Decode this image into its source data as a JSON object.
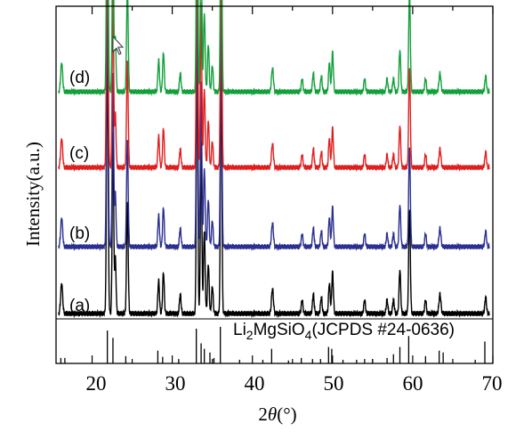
{
  "chart_data": {
    "type": "line",
    "title": "",
    "xlabel": {
      "theta": "θ",
      "prefix": "2",
      "suffix": "(°)"
    },
    "ylabel": "Intensity(a.u.)",
    "xlim": [
      15.5,
      70
    ],
    "x_ticks": [
      "20",
      "30",
      "40",
      "50",
      "60",
      "70"
    ],
    "x_tick_values": [
      20,
      30,
      40,
      50,
      60,
      70
    ],
    "grid": false,
    "peaks": [
      [
        16.2,
        0.11,
        0.12
      ],
      [
        21.9,
        0.95,
        0.1
      ],
      [
        22.6,
        0.66,
        0.09
      ],
      [
        22.9,
        0.2,
        0.09
      ],
      [
        24.4,
        0.4,
        0.1
      ],
      [
        28.3,
        0.12,
        0.1
      ],
      [
        28.9,
        0.15,
        0.1
      ],
      [
        31.0,
        0.07,
        0.1
      ],
      [
        33.1,
        1.0,
        0.09
      ],
      [
        33.6,
        0.62,
        0.09
      ],
      [
        34.0,
        0.3,
        0.1
      ],
      [
        34.5,
        0.18,
        0.1
      ],
      [
        35.0,
        0.1,
        0.1
      ],
      [
        36.1,
        0.92,
        0.09
      ],
      [
        42.5,
        0.09,
        0.12
      ],
      [
        46.2,
        0.05,
        0.1
      ],
      [
        47.6,
        0.07,
        0.1
      ],
      [
        48.6,
        0.06,
        0.1
      ],
      [
        49.6,
        0.11,
        0.1
      ],
      [
        50.0,
        0.15,
        0.1
      ],
      [
        54.0,
        0.05,
        0.1
      ],
      [
        56.8,
        0.05,
        0.1
      ],
      [
        57.6,
        0.05,
        0.1
      ],
      [
        58.4,
        0.16,
        0.1
      ],
      [
        59.6,
        0.38,
        0.1
      ],
      [
        61.6,
        0.05,
        0.1
      ],
      [
        63.4,
        0.07,
        0.12
      ],
      [
        69.1,
        0.06,
        0.1
      ]
    ],
    "series": [
      {
        "name": "(a)",
        "color": "#000000",
        "offset": 0,
        "scale": 1.0
      },
      {
        "name": "(b)",
        "color": "#2b2f8f",
        "offset": 1,
        "scale": 1.0
      },
      {
        "name": "(c)",
        "color": "#e01e1e",
        "offset": 2,
        "scale": 1.0
      },
      {
        "name": "(d)",
        "color": "#12a03a",
        "offset": 3,
        "scale": 1.0
      }
    ],
    "reference": {
      "label_main": "Li",
      "label_sub1": "2",
      "label_mid": "MgSiO",
      "label_sub2": "4",
      "label_tail": "(JCPDS #24-0636)",
      "lines": [
        [
          16.1,
          0.15
        ],
        [
          16.6,
          0.15
        ],
        [
          21.9,
          0.9
        ],
        [
          22.6,
          0.7
        ],
        [
          24.2,
          0.2
        ],
        [
          28.2,
          0.35
        ],
        [
          28.8,
          0.18
        ],
        [
          30.8,
          0.12
        ],
        [
          33.0,
          0.95
        ],
        [
          33.6,
          0.55
        ],
        [
          34.0,
          0.4
        ],
        [
          34.7,
          0.3
        ],
        [
          35.2,
          0.15
        ],
        [
          36.0,
          1.0
        ],
        [
          38.4,
          0.1
        ],
        [
          41.3,
          0.1
        ],
        [
          42.4,
          0.4
        ],
        [
          44.5,
          0.08
        ],
        [
          46.1,
          0.15
        ],
        [
          47.5,
          0.12
        ],
        [
          48.5,
          0.12
        ],
        [
          49.5,
          0.45
        ],
        [
          49.9,
          0.4
        ],
        [
          51.3,
          0.1
        ],
        [
          53.0,
          0.1
        ],
        [
          54.0,
          0.12
        ],
        [
          55.0,
          0.12
        ],
        [
          56.8,
          0.15
        ],
        [
          57.6,
          0.25
        ],
        [
          58.4,
          0.45
        ],
        [
          59.5,
          0.75
        ],
        [
          61.6,
          0.2
        ],
        [
          63.3,
          0.35
        ],
        [
          63.8,
          0.3
        ],
        [
          67.8,
          0.1
        ],
        [
          69.0,
          0.6
        ]
      ]
    }
  }
}
